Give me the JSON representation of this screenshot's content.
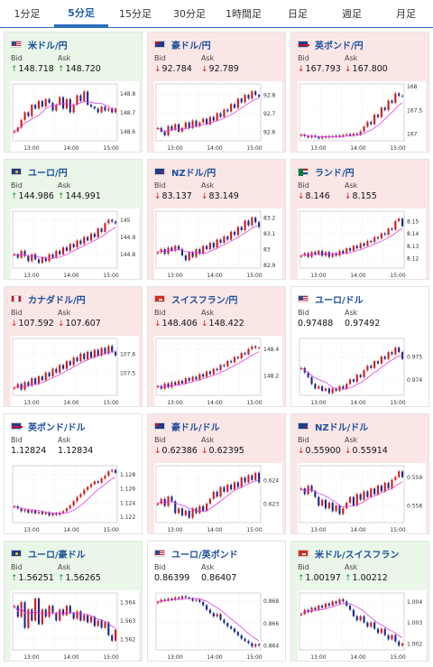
{
  "tabs": [
    "1分足",
    "5分足",
    "15分足",
    "30分足",
    "1時間足",
    "日足",
    "週足",
    "月足"
  ],
  "active_tab": 1,
  "colors": {
    "up": "#1d9a34",
    "down": "#d11b1b",
    "candle_up": "#d11b1b",
    "candle_down": "#1b2a8f",
    "ma": "#e040e0",
    "accent": "#2e6fbf"
  },
  "labels": {
    "bid": "Bid",
    "ask": "Ask"
  },
  "pairs": [
    {
      "name": "米ドル/円",
      "flag": "us",
      "state": "up",
      "dir": "up",
      "bid": "148.718",
      "ask": "148.720",
      "chart_data": {
        "type": "candlestick",
        "ylim": [
          148.55,
          148.85
        ],
        "yticks": [
          "148.8",
          "148.7",
          "148.6"
        ],
        "xticks": [
          "13:00",
          "14:00",
          "15:00"
        ],
        "closes": [
          148.6,
          148.62,
          148.66,
          148.7,
          148.68,
          148.74,
          148.72,
          148.76,
          148.73,
          148.77,
          148.75,
          148.71,
          148.74,
          148.78,
          148.72,
          148.77,
          148.7,
          148.74,
          148.79,
          148.76,
          148.81,
          148.74,
          148.73,
          148.72,
          148.7,
          148.73,
          148.71,
          148.72,
          148.7,
          148.72
        ]
      }
    },
    {
      "name": "豪ドル/円",
      "flag": "au",
      "state": "down",
      "dir": "down",
      "bid": "92.784",
      "ask": "92.789",
      "chart_data": {
        "type": "candlestick",
        "ylim": [
          92.55,
          92.86
        ],
        "yticks": [
          "92.8",
          "92.7",
          "92.6"
        ],
        "xticks": [
          "13:00",
          "14:00",
          "15:00"
        ],
        "closes": [
          92.62,
          92.6,
          92.58,
          92.63,
          92.61,
          92.64,
          92.6,
          92.62,
          92.65,
          92.62,
          92.66,
          92.63,
          92.65,
          92.67,
          92.64,
          92.68,
          92.66,
          92.7,
          92.68,
          92.72,
          92.71,
          92.75,
          92.73,
          92.78,
          92.76,
          92.8,
          92.78,
          92.82,
          92.8,
          92.79
        ]
      }
    },
    {
      "name": "英ポンド/円",
      "flag": "gb",
      "state": "down",
      "dir": "down",
      "bid": "167.793",
      "ask": "167.800",
      "chart_data": {
        "type": "candlestick",
        "ylim": [
          166.85,
          168.05
        ],
        "yticks": [
          "168",
          "167.5",
          "167"
        ],
        "xticks": [
          "13:00",
          "14:00",
          "15:00"
        ],
        "closes": [
          166.98,
          166.95,
          166.92,
          166.96,
          166.93,
          166.9,
          166.94,
          166.92,
          166.95,
          166.93,
          166.96,
          166.94,
          166.97,
          166.99,
          166.96,
          167.0,
          166.98,
          167.05,
          167.15,
          167.25,
          167.2,
          167.4,
          167.35,
          167.55,
          167.5,
          167.7,
          167.65,
          167.85,
          167.8,
          167.79
        ]
      }
    },
    {
      "name": "ユーロ/円",
      "flag": "eu",
      "state": "up",
      "dir": "up",
      "bid": "144.986",
      "ask": "144.991",
      "chart_data": {
        "type": "candlestick",
        "ylim": [
          144.72,
          145.05
        ],
        "yticks": [
          "145",
          "144.9",
          "144.8"
        ],
        "xticks": [
          "13:00",
          "14:00",
          "15:00"
        ],
        "closes": [
          144.8,
          144.78,
          144.82,
          144.79,
          144.76,
          144.8,
          144.77,
          144.75,
          144.78,
          144.76,
          144.8,
          144.78,
          144.82,
          144.8,
          144.84,
          144.82,
          144.86,
          144.84,
          144.88,
          144.86,
          144.9,
          144.88,
          144.92,
          144.9,
          144.95,
          144.93,
          144.98,
          145.0,
          144.99,
          144.98
        ]
      }
    },
    {
      "name": "NZドル/円",
      "flag": "nz",
      "state": "down",
      "dir": "down",
      "bid": "83.137",
      "ask": "83.149",
      "chart_data": {
        "type": "candlestick",
        "ylim": [
          82.88,
          83.24
        ],
        "yticks": [
          "83.2",
          "83.1",
          "83",
          "82.9"
        ],
        "xticks": [
          "13:00",
          "14:00",
          "15:00"
        ],
        "closes": [
          82.98,
          83.0,
          82.97,
          83.01,
          82.99,
          83.02,
          83.0,
          82.96,
          82.93,
          82.98,
          82.95,
          83.0,
          82.97,
          83.02,
          83.0,
          83.04,
          83.01,
          83.06,
          83.04,
          83.08,
          83.06,
          83.11,
          83.09,
          83.14,
          83.12,
          83.18,
          83.15,
          83.2,
          83.17,
          83.14
        ]
      }
    },
    {
      "name": "ランド/円",
      "flag": "za",
      "state": "down",
      "dir": "down",
      "bid": "8.146",
      "ask": "8.155",
      "chart_data": {
        "type": "candlestick",
        "ylim": [
          8.112,
          8.158
        ],
        "yticks": [
          "8.15",
          "8.14",
          "8.13",
          "8.12"
        ],
        "xticks": [
          "13:00",
          "14:00",
          "15:00"
        ],
        "closes": [
          8.122,
          8.124,
          8.121,
          8.125,
          8.123,
          8.126,
          8.122,
          8.125,
          8.121,
          8.124,
          8.122,
          8.126,
          8.124,
          8.128,
          8.126,
          8.13,
          8.128,
          8.132,
          8.13,
          8.134,
          8.133,
          8.137,
          8.136,
          8.14,
          8.139,
          8.144,
          8.143,
          8.15,
          8.152,
          8.146
        ]
      }
    },
    {
      "name": "カナダドル/円",
      "flag": "ca",
      "state": "down",
      "dir": "down",
      "bid": "107.592",
      "ask": "107.607",
      "chart_data": {
        "type": "candlestick",
        "ylim": [
          107.38,
          107.68
        ],
        "yticks": [
          "107.6",
          "107.5"
        ],
        "xticks": [
          "13:00",
          "14:00",
          "15:00"
        ],
        "closes": [
          107.42,
          107.44,
          107.41,
          107.45,
          107.43,
          107.47,
          107.44,
          107.48,
          107.46,
          107.5,
          107.48,
          107.52,
          107.5,
          107.54,
          107.52,
          107.56,
          107.54,
          107.58,
          107.56,
          107.6,
          107.57,
          107.61,
          107.58,
          107.62,
          107.59,
          107.63,
          107.6,
          107.64,
          107.61,
          107.59
        ]
      }
    },
    {
      "name": "スイスフラン/円",
      "flag": "ch",
      "state": "down",
      "dir": "down",
      "bid": "148.406",
      "ask": "148.422",
      "chart_data": {
        "type": "candlestick",
        "ylim": [
          148.05,
          148.48
        ],
        "yticks": [
          "148.4",
          "148.2"
        ],
        "xticks": [
          "13:00",
          "14:00",
          "15:00"
        ],
        "closes": [
          148.12,
          148.1,
          148.14,
          148.11,
          148.15,
          148.13,
          148.16,
          148.14,
          148.18,
          148.16,
          148.19,
          148.17,
          148.21,
          148.19,
          148.23,
          148.21,
          148.25,
          148.24,
          148.28,
          148.27,
          148.31,
          148.3,
          148.34,
          148.33,
          148.37,
          148.36,
          148.4,
          148.42,
          148.41,
          148.41
        ]
      }
    },
    {
      "name": "ユーロ/ドル",
      "flag": "us",
      "state": "flat",
      "dir": "flat",
      "bid": "0.97488",
      "ask": "0.97492",
      "chart_data": {
        "type": "candlestick",
        "ylim": [
          0.9733,
          0.9758
        ],
        "yticks": [
          "0.975",
          "0.974"
        ],
        "xticks": [
          "13:00",
          "14:00",
          "15:00"
        ],
        "closes": [
          0.9745,
          0.9743,
          0.9741,
          0.9738,
          0.9736,
          0.9737,
          0.9735,
          0.9736,
          0.9734,
          0.9736,
          0.9735,
          0.9737,
          0.9736,
          0.9738,
          0.974,
          0.9739,
          0.9742,
          0.9741,
          0.9744,
          0.9746,
          0.9745,
          0.9748,
          0.9747,
          0.975,
          0.9749,
          0.9752,
          0.9751,
          0.9754,
          0.9752,
          0.9749
        ]
      }
    },
    {
      "name": "英ポンド/ドル",
      "flag": "gb",
      "state": "flat",
      "dir": "flat",
      "bid": "1.12824",
      "ask": "1.12834",
      "chart_data": {
        "type": "candlestick",
        "ylim": [
          1.1212,
          1.1292
        ],
        "yticks": [
          "1.128",
          "1.126",
          "1.124",
          "1.122"
        ],
        "xticks": [
          "13:00",
          "14:00",
          "15:00"
        ],
        "closes": [
          1.1235,
          1.1232,
          1.1228,
          1.123,
          1.1226,
          1.1229,
          1.1225,
          1.1227,
          1.1224,
          1.1226,
          1.1222,
          1.1225,
          1.1223,
          1.1226,
          1.1228,
          1.1232,
          1.1236,
          1.1242,
          1.1248,
          1.1252,
          1.1258,
          1.1262,
          1.1266,
          1.127,
          1.1268,
          1.1274,
          1.1278,
          1.1284,
          1.1286,
          1.1282
        ]
      }
    },
    {
      "name": "豪ドル/ドル",
      "flag": "au",
      "state": "down",
      "dir": "down",
      "bid": "0.62386",
      "ask": "0.62395",
      "chart_data": {
        "type": "candlestick",
        "ylim": [
          0.6222,
          0.6246
        ],
        "yticks": [
          "0.624",
          "0.623"
        ],
        "xticks": [
          "13:00",
          "14:00",
          "15:00"
        ],
        "closes": [
          0.623,
          0.6232,
          0.6229,
          0.6233,
          0.6231,
          0.6226,
          0.6228,
          0.6225,
          0.6227,
          0.6224,
          0.6228,
          0.6226,
          0.6229,
          0.6227,
          0.623,
          0.6232,
          0.6235,
          0.6233,
          0.6237,
          0.6235,
          0.6238,
          0.6236,
          0.6239,
          0.6237,
          0.6241,
          0.6239,
          0.6242,
          0.624,
          0.6243,
          0.6239
        ]
      }
    },
    {
      "name": "NZドル/ドル",
      "flag": "nz",
      "state": "down",
      "dir": "down",
      "bid": "0.55900",
      "ask": "0.55914",
      "chart_data": {
        "type": "candlestick",
        "ylim": [
          0.5574,
          0.5594
        ],
        "yticks": [
          "0.559",
          "0.558"
        ],
        "xticks": [
          "13:00",
          "14:00",
          "15:00"
        ],
        "closes": [
          0.5586,
          0.5584,
          0.5587,
          0.5585,
          0.5583,
          0.558,
          0.5582,
          0.5579,
          0.5581,
          0.5578,
          0.558,
          0.5577,
          0.5579,
          0.5581,
          0.5583,
          0.558,
          0.5584,
          0.5582,
          0.5585,
          0.5583,
          0.5586,
          0.5584,
          0.5587,
          0.5585,
          0.5588,
          0.5586,
          0.5589,
          0.559,
          0.5592,
          0.559
        ]
      }
    },
    {
      "name": "ユーロ/豪ドル",
      "flag": "eu",
      "state": "up",
      "dir": "up",
      "bid": "1.56251",
      "ask": "1.56265",
      "chart_data": {
        "type": "candlestick",
        "ylim": [
          1.5614,
          1.5645
        ],
        "yticks": [
          "1.564",
          "1.563",
          "1.562"
        ],
        "xticks": [
          "13:00",
          "14:00",
          "15:00"
        ],
        "closes": [
          1.5638,
          1.5632,
          1.564,
          1.5626,
          1.5636,
          1.563,
          1.5642,
          1.5628,
          1.5636,
          1.5632,
          1.5638,
          1.5634,
          1.563,
          1.5636,
          1.5633,
          1.5638,
          1.5634,
          1.5631,
          1.5635,
          1.563,
          1.5633,
          1.5629,
          1.5632,
          1.5627,
          1.563,
          1.5626,
          1.5629,
          1.5622,
          1.5619,
          1.5625
        ]
      }
    },
    {
      "name": "ユーロ/英ポンド",
      "flag": "us",
      "state": "flat",
      "dir": "flat",
      "bid": "0.86399",
      "ask": "0.86407",
      "chart_data": {
        "type": "candlestick",
        "ylim": [
          0.8636,
          0.8687
        ],
        "yticks": [
          "0.868",
          "0.866",
          "0.864"
        ],
        "xticks": [
          "13:00",
          "14:00",
          "15:00"
        ],
        "closes": [
          0.8679,
          0.8681,
          0.868,
          0.8682,
          0.8681,
          0.8683,
          0.8682,
          0.8684,
          0.8683,
          0.8682,
          0.868,
          0.8681,
          0.8679,
          0.8676,
          0.8672,
          0.8669,
          0.8666,
          0.8668,
          0.8663,
          0.866,
          0.8657,
          0.8655,
          0.8652,
          0.8649,
          0.8646,
          0.8644,
          0.8642,
          0.8639,
          0.8641,
          0.864
        ]
      }
    },
    {
      "name": "米ドル/スイスフラン",
      "flag": "ch",
      "state": "up",
      "dir": "up",
      "bid": "1.00197",
      "ask": "1.00212",
      "chart_data": {
        "type": "candlestick",
        "ylim": [
          1.0017,
          1.0044
        ],
        "yticks": [
          "1.004",
          "1.003",
          "1.002"
        ],
        "xticks": [
          "13:00",
          "14:00",
          "15:00"
        ],
        "closes": [
          1.0034,
          1.0036,
          1.0035,
          1.0037,
          1.0036,
          1.0038,
          1.0037,
          1.0039,
          1.0038,
          1.004,
          1.0039,
          1.0041,
          1.004,
          1.0038,
          1.0036,
          1.0033,
          1.0031,
          1.0033,
          1.003,
          1.0028,
          1.003,
          1.0027,
          1.0025,
          1.0027,
          1.0024,
          1.0022,
          1.0024,
          1.0021,
          1.0019,
          1.002
        ]
      }
    }
  ]
}
